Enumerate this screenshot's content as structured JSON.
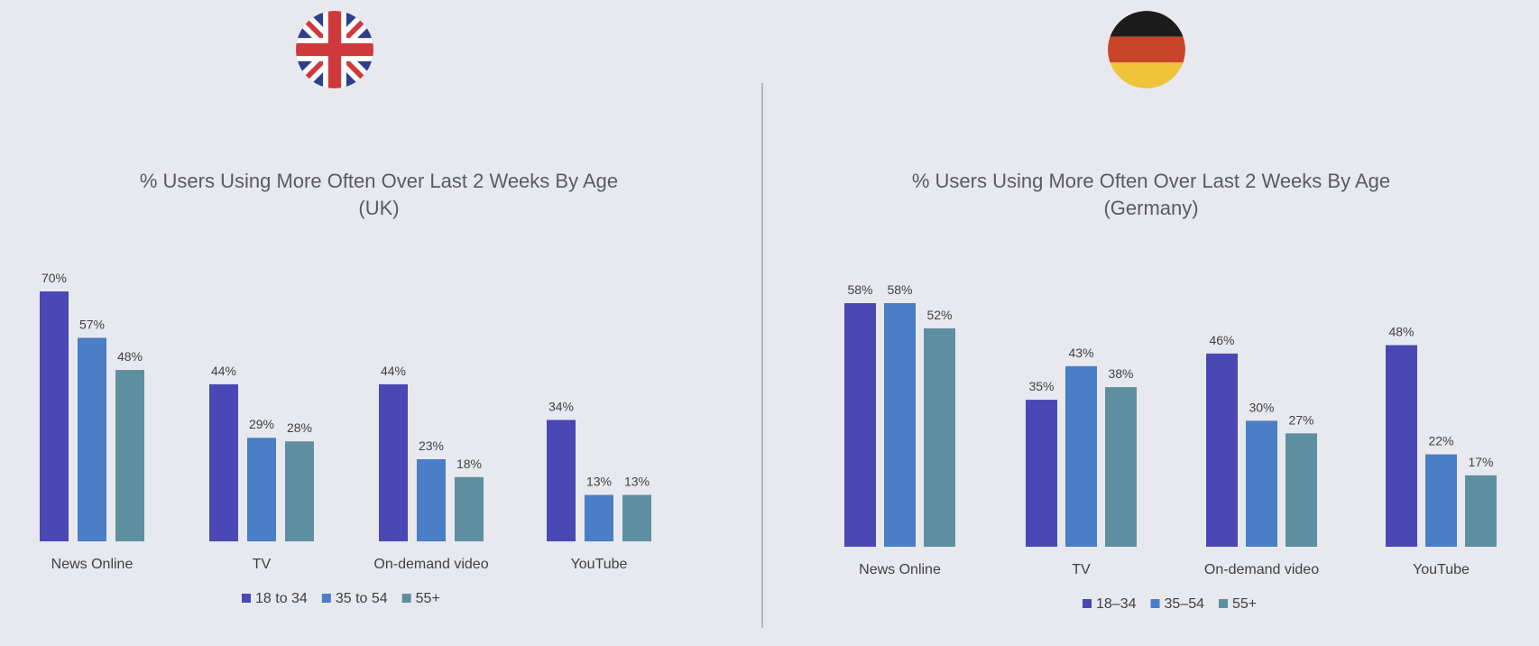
{
  "colors": {
    "background": "#e8e9ee",
    "series_1": "#4a48b5",
    "series_2": "#4a7ec7",
    "series_3": "#5e8fa0",
    "divider": "#b3b5ba"
  },
  "flags": {
    "uk": {
      "icon": "uk-flag-icon"
    },
    "germany": {
      "icon": "germany-flag-icon"
    }
  },
  "chart_data": [
    {
      "type": "bar",
      "title": "% Users Using More Often Over Last 2 Weeks By Age",
      "subtitle": "(UK)",
      "categories": [
        "News Online",
        "TV",
        "On-demand video",
        "YouTube"
      ],
      "series": [
        {
          "name": "18 to 34",
          "values": [
            70,
            44,
            44,
            34
          ]
        },
        {
          "name": "35 to 54",
          "values": [
            57,
            29,
            23,
            13
          ]
        },
        {
          "name": "55+",
          "values": [
            48,
            28,
            18,
            13
          ]
        }
      ],
      "value_suffix": "%",
      "ylim": [
        0,
        70
      ],
      "grid": false,
      "legend": "bottom"
    },
    {
      "type": "bar",
      "title": "% Users Using More Often Over Last 2 Weeks By Age",
      "subtitle": "(Germany)",
      "categories": [
        "News Online",
        "TV",
        "On-demand video",
        "YouTube"
      ],
      "series": [
        {
          "name": "18–34",
          "values": [
            58,
            35,
            46,
            48
          ]
        },
        {
          "name": "35–54",
          "values": [
            58,
            43,
            30,
            22
          ]
        },
        {
          "name": "55+",
          "values": [
            52,
            38,
            27,
            17
          ]
        }
      ],
      "value_suffix": "%",
      "ylim": [
        0,
        58
      ],
      "grid": false,
      "legend": "bottom"
    }
  ]
}
